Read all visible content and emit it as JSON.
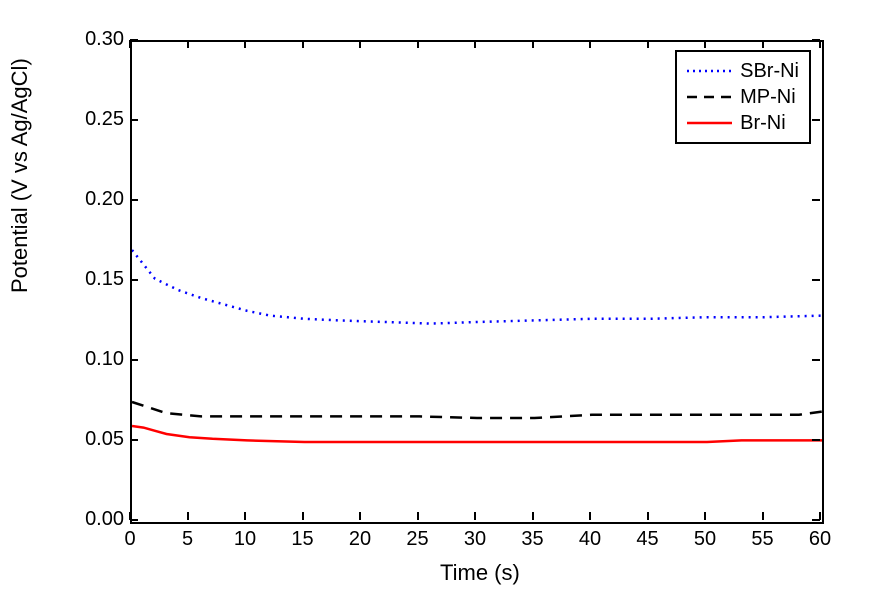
{
  "chart": {
    "type": "line",
    "xlabel": "Time (s)",
    "ylabel": "Potential (V vs Ag/AgCl)",
    "xlim": [
      0,
      60
    ],
    "ylim": [
      0.0,
      0.3
    ],
    "xtick_step": 5,
    "ytick_step": 0.05,
    "background_color": "#ffffff",
    "axis_color": "#000000",
    "label_fontsize": 22,
    "tick_fontsize": 20,
    "y_tick_labels": [
      "0.00",
      "0.05",
      "0.10",
      "0.15",
      "0.20",
      "0.25",
      "0.30"
    ],
    "x_tick_labels": [
      "0",
      "5",
      "10",
      "15",
      "20",
      "25",
      "30",
      "35",
      "40",
      "45",
      "50",
      "55",
      "60"
    ],
    "legend": {
      "position": "top-right",
      "border_color": "#000000",
      "items": [
        "SBr-Ni",
        "MP-Ni",
        "Br-Ni"
      ]
    },
    "series": [
      {
        "name": "SBr-Ni",
        "color": "#0000ff",
        "style": "dotted",
        "line_width": 2.5,
        "x": [
          0,
          2,
          4,
          6,
          8,
          10,
          12,
          15,
          18,
          22,
          26,
          30,
          35,
          40,
          45,
          50,
          55,
          60
        ],
        "y": [
          0.17,
          0.152,
          0.145,
          0.14,
          0.136,
          0.132,
          0.129,
          0.127,
          0.126,
          0.125,
          0.124,
          0.125,
          0.126,
          0.127,
          0.127,
          0.128,
          0.128,
          0.129
        ]
      },
      {
        "name": "MP-Ni",
        "color": "#000000",
        "style": "dashed",
        "line_width": 2.5,
        "x": [
          0,
          3,
          6,
          10,
          15,
          20,
          25,
          30,
          35,
          40,
          45,
          50,
          55,
          58,
          60
        ],
        "y": [
          0.075,
          0.068,
          0.066,
          0.066,
          0.066,
          0.066,
          0.066,
          0.065,
          0.065,
          0.067,
          0.067,
          0.067,
          0.067,
          0.067,
          0.069
        ]
      },
      {
        "name": "Br-Ni",
        "color": "#ff0000",
        "style": "solid",
        "line_width": 2.5,
        "x": [
          0,
          1,
          2,
          3,
          5,
          7,
          10,
          15,
          20,
          25,
          30,
          35,
          40,
          45,
          50,
          53,
          55,
          58,
          60
        ],
        "y": [
          0.06,
          0.059,
          0.057,
          0.055,
          0.053,
          0.052,
          0.051,
          0.05,
          0.05,
          0.05,
          0.05,
          0.05,
          0.05,
          0.05,
          0.05,
          0.051,
          0.051,
          0.051,
          0.051
        ]
      }
    ]
  }
}
